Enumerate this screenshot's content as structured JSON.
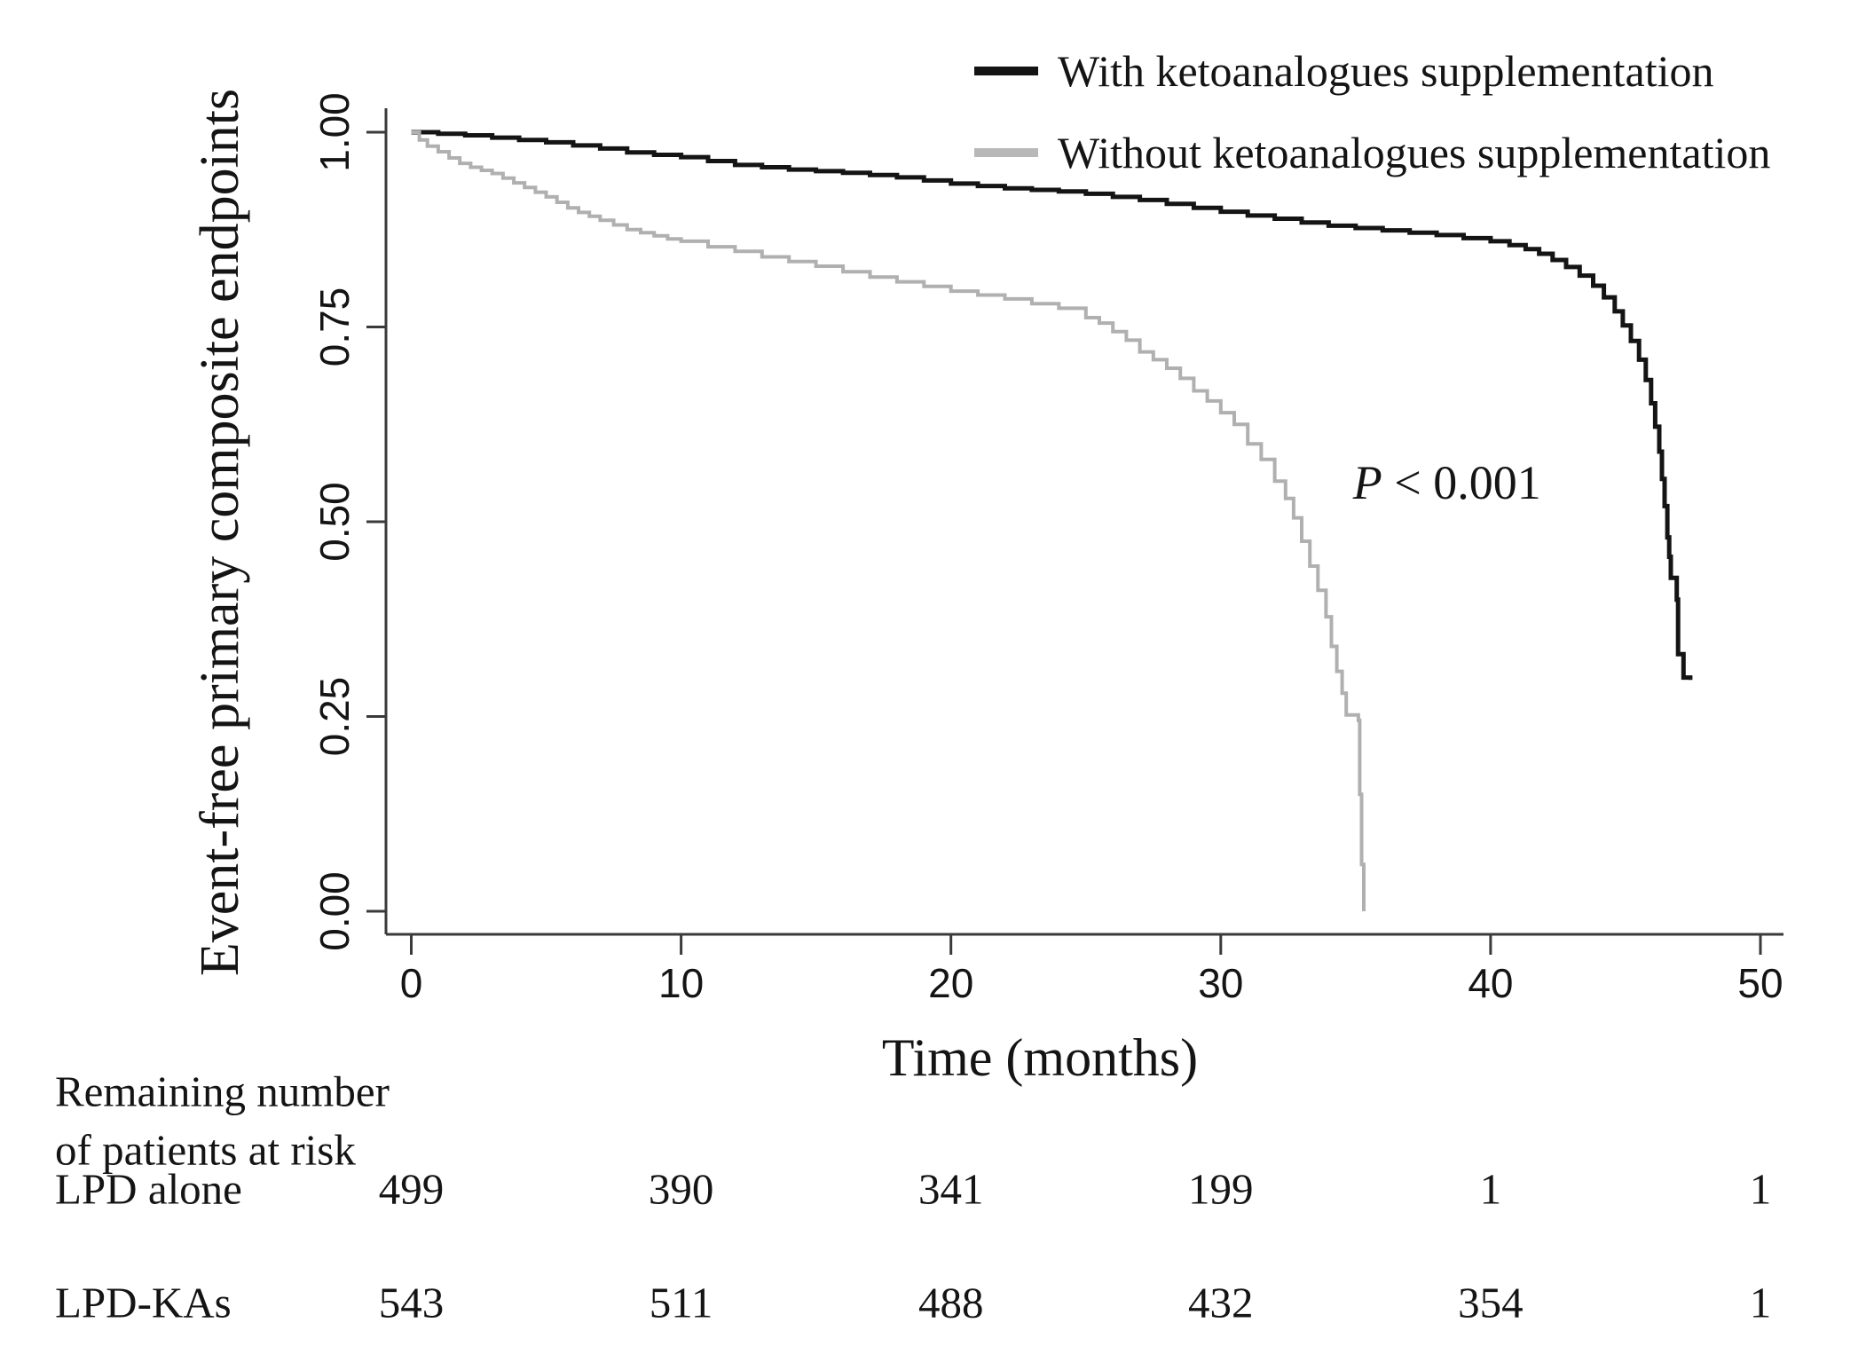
{
  "figure": {
    "p_value_label": "P < 0.001",
    "x_axis_label": "Time (months)",
    "y_axis_label": "Event-free primary composite endpoints"
  },
  "legend": {
    "items": [
      {
        "id": "with-ka",
        "label": "With ketoanalogues supplementation",
        "color": "#141414"
      },
      {
        "id": "without-ka",
        "label": "Without ketoanalogues supplementation",
        "color": "#b8b8b8"
      }
    ]
  },
  "risk_table": {
    "header_line1": "Remaining number",
    "header_line2": "of patients at risk",
    "rows": [
      {
        "label": "LPD alone",
        "counts": [
          "499",
          "390",
          "341",
          "199",
          "1",
          "1"
        ]
      },
      {
        "label": "LPD-KAs",
        "counts": [
          "543",
          "511",
          "488",
          "432",
          "354",
          "1"
        ]
      }
    ]
  },
  "chart_data": {
    "type": "line",
    "subtype": "kaplan-meier-step",
    "title": "",
    "xlabel": "Time (months)",
    "ylabel": "Event-free primary composite endpoints",
    "xlim": [
      0,
      50
    ],
    "ylim": [
      0.0,
      1.0
    ],
    "grid": false,
    "legend_position": "top-right",
    "x_ticks": [
      {
        "label": "0",
        "value": 0
      },
      {
        "label": "10",
        "value": 10
      },
      {
        "label": "20",
        "value": 20
      },
      {
        "label": "30",
        "value": 30
      },
      {
        "label": "40",
        "value": 40
      },
      {
        "label": "50",
        "value": 50
      }
    ],
    "y_ticks": [
      {
        "label": "0.00",
        "value": 0.0
      },
      {
        "label": "0.25",
        "value": 0.25
      },
      {
        "label": "0.50",
        "value": 0.5
      },
      {
        "label": "0.75",
        "value": 0.75
      },
      {
        "label": "1.00",
        "value": 1.0
      }
    ],
    "annotations": [
      {
        "text": "P < 0.001",
        "x": 34.9,
        "y": 0.55,
        "italic_prefix": "P",
        "rest": " < 0.001"
      }
    ],
    "series": [
      {
        "id": "with-ka",
        "name": "With ketoanalogues supplementation",
        "color": "#141414",
        "stroke_width": 5,
        "points": [
          [
            0,
            1.0
          ],
          [
            1,
            0.998
          ],
          [
            2,
            0.996
          ],
          [
            3,
            0.993
          ],
          [
            4,
            0.99
          ],
          [
            5,
            0.987
          ],
          [
            6,
            0.983
          ],
          [
            7,
            0.979
          ],
          [
            8,
            0.974
          ],
          [
            9,
            0.971
          ],
          [
            10,
            0.968
          ],
          [
            11,
            0.963
          ],
          [
            12,
            0.958
          ],
          [
            13,
            0.955
          ],
          [
            14,
            0.952
          ],
          [
            15,
            0.95
          ],
          [
            16,
            0.948
          ],
          [
            17,
            0.945
          ],
          [
            18,
            0.942
          ],
          [
            19,
            0.938
          ],
          [
            20,
            0.934
          ],
          [
            21,
            0.931
          ],
          [
            22,
            0.928
          ],
          [
            23,
            0.926
          ],
          [
            24,
            0.924
          ],
          [
            25,
            0.921
          ],
          [
            26,
            0.917
          ],
          [
            27,
            0.913
          ],
          [
            28,
            0.908
          ],
          [
            29,
            0.903
          ],
          [
            30,
            0.898
          ],
          [
            31,
            0.893
          ],
          [
            32,
            0.889
          ],
          [
            33,
            0.884
          ],
          [
            34,
            0.88
          ],
          [
            35,
            0.877
          ],
          [
            36,
            0.874
          ],
          [
            37,
            0.871
          ],
          [
            38,
            0.868
          ],
          [
            39,
            0.864
          ],
          [
            40,
            0.86
          ],
          [
            40.7,
            0.855
          ],
          [
            41.3,
            0.85
          ],
          [
            41.8,
            0.844
          ],
          [
            42.3,
            0.836
          ],
          [
            42.8,
            0.827
          ],
          [
            43.3,
            0.816
          ],
          [
            43.8,
            0.803
          ],
          [
            44.2,
            0.788
          ],
          [
            44.6,
            0.77
          ],
          [
            44.9,
            0.752
          ],
          [
            45.2,
            0.732
          ],
          [
            45.5,
            0.708
          ],
          [
            45.75,
            0.682
          ],
          [
            45.95,
            0.652
          ],
          [
            46.1,
            0.622
          ],
          [
            46.25,
            0.59
          ],
          [
            46.35,
            0.555
          ],
          [
            46.45,
            0.52
          ],
          [
            46.55,
            0.48
          ],
          [
            46.62,
            0.455
          ],
          [
            46.68,
            0.428
          ],
          [
            46.9,
            0.4
          ],
          [
            46.95,
            0.33
          ],
          [
            47.15,
            0.3
          ],
          [
            47.4,
            0.297
          ]
        ]
      },
      {
        "id": "without-ka",
        "name": "Without ketoanalogues supplementation",
        "color": "#b0b0b0",
        "stroke_width": 4,
        "points": [
          [
            0,
            1.0
          ],
          [
            0.3,
            0.99
          ],
          [
            0.6,
            0.982
          ],
          [
            1.0,
            0.975
          ],
          [
            1.4,
            0.967
          ],
          [
            1.8,
            0.96
          ],
          [
            2.2,
            0.955
          ],
          [
            2.6,
            0.951
          ],
          [
            3.0,
            0.947
          ],
          [
            3.4,
            0.941
          ],
          [
            3.8,
            0.935
          ],
          [
            4.2,
            0.929
          ],
          [
            4.6,
            0.923
          ],
          [
            5.0,
            0.917
          ],
          [
            5.4,
            0.91
          ],
          [
            5.8,
            0.903
          ],
          [
            6.2,
            0.897
          ],
          [
            6.6,
            0.892
          ],
          [
            7.0,
            0.887
          ],
          [
            7.5,
            0.881
          ],
          [
            8.0,
            0.875
          ],
          [
            8.5,
            0.871
          ],
          [
            9.0,
            0.867
          ],
          [
            9.5,
            0.863
          ],
          [
            10,
            0.86
          ],
          [
            11,
            0.853
          ],
          [
            12,
            0.847
          ],
          [
            13,
            0.84
          ],
          [
            14,
            0.834
          ],
          [
            15,
            0.828
          ],
          [
            16,
            0.821
          ],
          [
            17,
            0.814
          ],
          [
            18,
            0.808
          ],
          [
            19,
            0.802
          ],
          [
            20,
            0.796
          ],
          [
            21,
            0.791
          ],
          [
            22,
            0.786
          ],
          [
            23,
            0.78
          ],
          [
            24,
            0.774
          ],
          [
            25,
            0.762
          ],
          [
            25.5,
            0.755
          ],
          [
            26,
            0.744
          ],
          [
            26.5,
            0.733
          ],
          [
            27,
            0.718
          ],
          [
            27.5,
            0.708
          ],
          [
            28,
            0.697
          ],
          [
            28.5,
            0.684
          ],
          [
            29,
            0.668
          ],
          [
            29.5,
            0.655
          ],
          [
            30,
            0.64
          ],
          [
            30.5,
            0.625
          ],
          [
            31,
            0.6
          ],
          [
            31.5,
            0.58
          ],
          [
            32,
            0.552
          ],
          [
            32.4,
            0.53
          ],
          [
            32.7,
            0.505
          ],
          [
            33.0,
            0.475
          ],
          [
            33.3,
            0.443
          ],
          [
            33.6,
            0.412
          ],
          [
            33.9,
            0.378
          ],
          [
            34.1,
            0.34
          ],
          [
            34.3,
            0.308
          ],
          [
            34.5,
            0.28
          ],
          [
            34.65,
            0.252
          ],
          [
            35.1,
            0.245
          ],
          [
            35.15,
            0.15
          ],
          [
            35.22,
            0.06
          ],
          [
            35.3,
            0.0
          ]
        ]
      }
    ],
    "risk_table_rows": [
      {
        "name": "LPD alone",
        "times": [
          0,
          10,
          20,
          30,
          40,
          50
        ],
        "at_risk": [
          499,
          390,
          341,
          199,
          1,
          1
        ]
      },
      {
        "name": "LPD-KAs",
        "times": [
          0,
          10,
          20,
          30,
          40,
          50
        ],
        "at_risk": [
          543,
          511,
          488,
          432,
          354,
          1
        ]
      }
    ]
  }
}
